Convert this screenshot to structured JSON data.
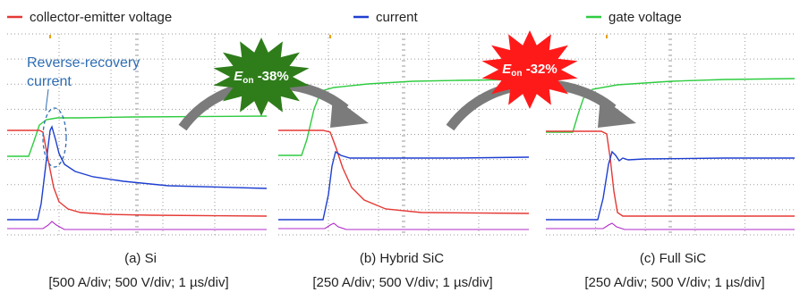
{
  "legend": [
    {
      "label": "collector-emitter voltage",
      "color": "#e53935"
    },
    {
      "label": "current",
      "color": "#1e3fd0"
    },
    {
      "label": "gate voltage",
      "color": "#2ecc40"
    }
  ],
  "annotation": {
    "line1": "Reverse-recovery",
    "line2": "current"
  },
  "comparisons": [
    {
      "symbol": "E",
      "sub": "on",
      "value": "-38%",
      "color": "#2e7d1a"
    },
    {
      "symbol": "E",
      "sub": "on",
      "value": "-32%",
      "color": "#ff1a1a"
    }
  ],
  "panels": [
    {
      "caption": "(a) Si",
      "scale": "[500 A/div; 500 V/div; 1 µs/div]"
    },
    {
      "caption": "(b) Hybrid SiC",
      "scale": "[250 A/div; 500 V/div; 1 µs/div]"
    },
    {
      "caption": "(c) Full SiC",
      "scale": "[250 A/div; 500 V/div; 1 µs/div]"
    }
  ],
  "chart_data": {
    "type": "line",
    "title": "",
    "series": [
      {
        "name": "collector-emitter voltage"
      },
      {
        "name": "current"
      },
      {
        "name": "gate voltage"
      }
    ]
  },
  "colors": {
    "grid": "#9a9a9a",
    "arrow": "#7b7b7b",
    "highlight": "#e8a000",
    "tail": "#b028c8"
  }
}
